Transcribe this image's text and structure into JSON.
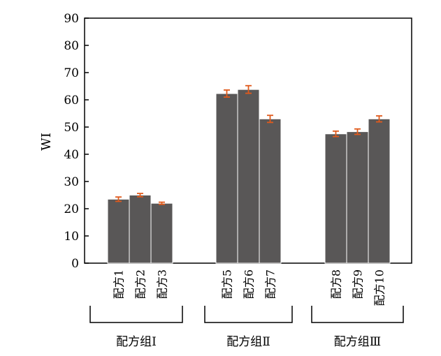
{
  "chart_data": {
    "type": "bar",
    "title": "",
    "xlabel": "",
    "ylabel": "WI",
    "ylim": [
      0,
      90
    ],
    "yticks": [
      0,
      10,
      20,
      30,
      40,
      50,
      60,
      70,
      80,
      90
    ],
    "grid": false,
    "colors": {
      "bar": "#595757",
      "error_bar": "#e05a1c",
      "axis": "#000000"
    },
    "categories": [
      "配方1",
      "配方2",
      "配方3",
      "配方5",
      "配方6",
      "配方7",
      "配方8",
      "配方9",
      "配方10"
    ],
    "values": [
      23.5,
      25.0,
      22.0,
      62.3,
      63.8,
      53.0,
      47.5,
      48.3,
      53.0
    ],
    "errors": [
      0.8,
      0.6,
      0.4,
      1.3,
      1.4,
      1.3,
      1.0,
      1.0,
      1.1
    ],
    "groups": [
      {
        "label": "配方组Ⅰ",
        "members": [
          0,
          1,
          2
        ]
      },
      {
        "label": "配方组Ⅱ",
        "members": [
          3,
          4,
          5
        ]
      },
      {
        "label": "配方组Ⅲ",
        "members": [
          6,
          7,
          8
        ]
      }
    ]
  }
}
